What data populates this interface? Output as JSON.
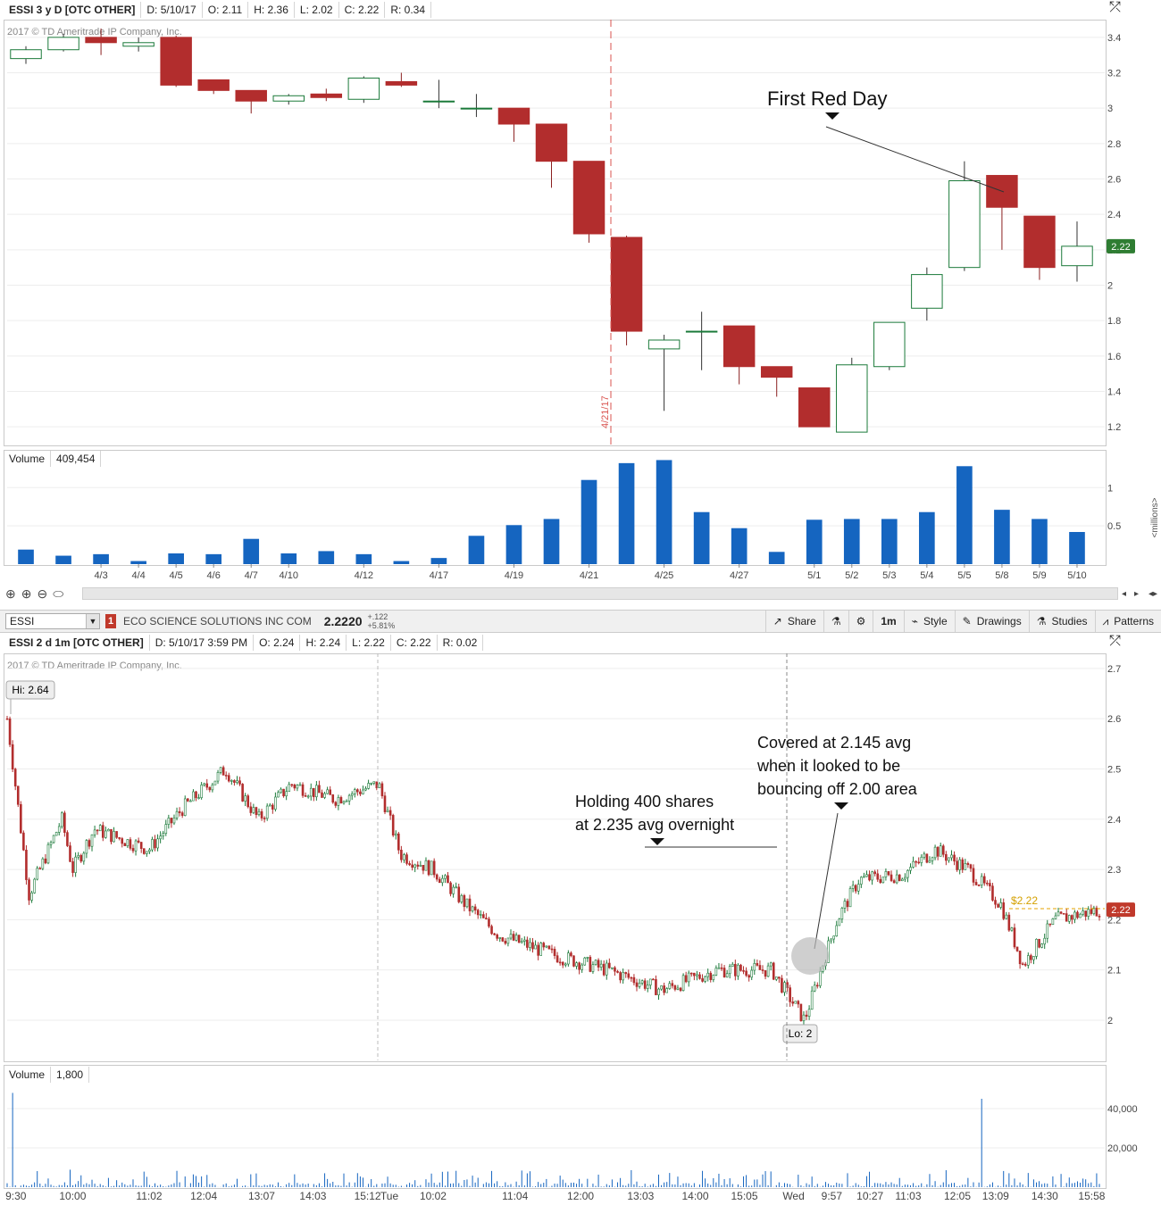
{
  "top": {
    "header": {
      "symbol": "ESSI 3 y D [OTC OTHER]",
      "d": "D: 5/10/17",
      "o": "O: 2.11",
      "h": "H: 2.36",
      "l": "L: 2.02",
      "c": "C: 2.22",
      "r": "R: 0.34"
    },
    "copyright": "2017 © TD Ameritrade IP Company, Inc.",
    "volume_label": "Volume",
    "volume_value": "409,454",
    "volume_unit": "<millions>",
    "event_label": "4/21/17",
    "annotation": "First Red Day"
  },
  "toolbar": {
    "symbol": "ESSI",
    "alert_count": "1",
    "company": "ECO SCIENCE SOLUTIONS INC COM",
    "price": "2.2220",
    "change": "+.122",
    "change_pct": "+5.81%",
    "share": "Share",
    "interval": "1m",
    "style": "Style",
    "drawings": "Drawings",
    "studies": "Studies",
    "patterns": "Patterns"
  },
  "bottom": {
    "header": {
      "symbol": "ESSI 2 d 1m [OTC OTHER]",
      "d": "D: 5/10/17 3:59 PM",
      "o": "O: 2.24",
      "h": "H: 2.24",
      "l": "L: 2.22",
      "c": "C: 2.22",
      "r": "R: 0.02"
    },
    "copyright": "2017 © TD Ameritrade IP Company, Inc.",
    "hi_label": "Hi: 2.64",
    "lo_label": "Lo: 2",
    "last_tag": "$2.22",
    "volume_label": "Volume",
    "volume_value": "1,800",
    "annotation_hold": [
      "Holding 400 shares",
      "at 2.235 avg overnight"
    ],
    "annotation_cover": [
      "Covered at 2.145 avg",
      "when it looked to be",
      "bouncing off 2.00 area"
    ]
  },
  "colors": {
    "up": "#1b7a3a",
    "down": "#b22d2d",
    "volume": "#1565c0",
    "last_price": "#2e7d32",
    "last_price_bottom": "#c0392b",
    "event_line": "#d9534f"
  },
  "chart_data": [
    {
      "type": "candlestick",
      "title": "ESSI 3 y D [OTC OTHER]",
      "y_ticks": [
        1.2,
        1.4,
        1.6,
        1.8,
        2,
        2.2,
        2.4,
        2.6,
        2.8,
        3,
        3.2,
        3.4
      ],
      "ylim": [
        1.1,
        3.5
      ],
      "last_price": 2.22,
      "x_tick_labels": [
        "4/3",
        "4/4",
        "4/5",
        "4/6",
        "4/7",
        "4/10",
        "4/12",
        "4/17",
        "4/19",
        "4/21",
        "4/25",
        "4/27",
        "5/1",
        "5/2",
        "5/3",
        "5/4",
        "5/5",
        "5/8",
        "5/9",
        "5/10"
      ],
      "candles": [
        {
          "o": 3.28,
          "h": 3.35,
          "l": 3.25,
          "c": 3.33
        },
        {
          "o": 3.33,
          "h": 3.42,
          "l": 3.32,
          "c": 3.4
        },
        {
          "o": 3.4,
          "h": 3.45,
          "l": 3.3,
          "c": 3.37
        },
        {
          "o": 3.35,
          "h": 3.4,
          "l": 3.32,
          "c": 3.37
        },
        {
          "o": 3.4,
          "h": 3.41,
          "l": 3.12,
          "c": 3.13
        },
        {
          "o": 3.16,
          "h": 3.16,
          "l": 3.08,
          "c": 3.1
        },
        {
          "o": 3.1,
          "h": 3.1,
          "l": 2.97,
          "c": 3.04
        },
        {
          "o": 3.04,
          "h": 3.08,
          "l": 3.02,
          "c": 3.07
        },
        {
          "o": 3.08,
          "h": 3.11,
          "l": 3.04,
          "c": 3.06
        },
        {
          "o": 3.05,
          "h": 3.18,
          "l": 3.03,
          "c": 3.17
        },
        {
          "o": 3.15,
          "h": 3.2,
          "l": 3.12,
          "c": 3.13
        },
        {
          "o": 3.04,
          "h": 3.16,
          "l": 3.0,
          "c": 3.04
        },
        {
          "o": 3.0,
          "h": 3.08,
          "l": 2.95,
          "c": 3.0
        },
        {
          "o": 3.0,
          "h": 3.0,
          "l": 2.81,
          "c": 2.91
        },
        {
          "o": 2.91,
          "h": 2.91,
          "l": 2.55,
          "c": 2.7
        },
        {
          "o": 2.7,
          "h": 2.7,
          "l": 2.24,
          "c": 2.29
        },
        {
          "o": 2.27,
          "h": 2.28,
          "l": 1.66,
          "c": 1.74
        },
        {
          "o": 1.64,
          "h": 1.72,
          "l": 1.29,
          "c": 1.69
        },
        {
          "o": 1.74,
          "h": 1.85,
          "l": 1.52,
          "c": 1.74
        },
        {
          "o": 1.77,
          "h": 1.77,
          "l": 1.44,
          "c": 1.54
        },
        {
          "o": 1.54,
          "h": 1.54,
          "l": 1.37,
          "c": 1.48
        },
        {
          "o": 1.42,
          "h": 1.42,
          "l": 1.2,
          "c": 1.2
        },
        {
          "o": 1.17,
          "h": 1.59,
          "l": 1.17,
          "c": 1.55
        },
        {
          "o": 1.54,
          "h": 1.79,
          "l": 1.52,
          "c": 1.79
        },
        {
          "o": 1.87,
          "h": 2.1,
          "l": 1.8,
          "c": 2.06
        },
        {
          "o": 2.1,
          "h": 2.7,
          "l": 2.08,
          "c": 2.59
        },
        {
          "o": 2.62,
          "h": 2.62,
          "l": 2.2,
          "c": 2.44
        },
        {
          "o": 2.39,
          "h": 2.39,
          "l": 2.03,
          "c": 2.1
        },
        {
          "o": 2.11,
          "h": 2.36,
          "l": 2.02,
          "c": 2.22
        }
      ],
      "volume": {
        "ylim": [
          0,
          1.4
        ],
        "y_ticks": [
          0.5,
          1
        ],
        "unit": "millions",
        "values": [
          0.19,
          0.11,
          0.13,
          0.04,
          0.14,
          0.13,
          0.33,
          0.14,
          0.17,
          0.13,
          0.04,
          0.08,
          0.37,
          0.51,
          0.59,
          1.1,
          1.32,
          1.36,
          0.68,
          0.47,
          0.16,
          0.58,
          0.59,
          0.59,
          0.68,
          1.28,
          0.71,
          0.59,
          0.42
        ]
      }
    },
    {
      "type": "candlestick",
      "title": "ESSI 2 d 1m [OTC OTHER]",
      "y_ticks": [
        2,
        2.1,
        2.2,
        2.3,
        2.4,
        2.5,
        2.6,
        2.7
      ],
      "ylim": [
        1.92,
        2.73
      ],
      "last_price": 2.22,
      "high": 2.64,
      "low": 2.0,
      "x_tick_labels": [
        "9:30",
        "10:00",
        "11:02",
        "12:04",
        "13:07",
        "14:03",
        "15:12",
        "Tue",
        "10:02",
        "11:04",
        "12:00",
        "13:03",
        "14:00",
        "15:05",
        "Wed",
        "9:57",
        "10:27",
        "11:03",
        "12:05",
        "13:09",
        "14:30",
        "15:58"
      ],
      "price_path": [
        {
          "x": 0,
          "y": 2.6
        },
        {
          "x": 0.02,
          "y": 2.25
        },
        {
          "x": 0.05,
          "y": 2.4
        },
        {
          "x": 0.06,
          "y": 2.3
        },
        {
          "x": 0.08,
          "y": 2.38
        },
        {
          "x": 0.13,
          "y": 2.34
        },
        {
          "x": 0.16,
          "y": 2.42
        },
        {
          "x": 0.2,
          "y": 2.5
        },
        {
          "x": 0.23,
          "y": 2.4
        },
        {
          "x": 0.26,
          "y": 2.47
        },
        {
          "x": 0.3,
          "y": 2.44
        },
        {
          "x": 0.34,
          "y": 2.47
        },
        {
          "x": 0.36,
          "y": 2.33
        },
        {
          "x": 0.39,
          "y": 2.3
        },
        {
          "x": 0.42,
          "y": 2.23
        },
        {
          "x": 0.45,
          "y": 2.17
        },
        {
          "x": 0.5,
          "y": 2.13
        },
        {
          "x": 0.55,
          "y": 2.1
        },
        {
          "x": 0.6,
          "y": 2.06
        },
        {
          "x": 0.65,
          "y": 2.1
        },
        {
          "x": 0.7,
          "y": 2.1
        },
        {
          "x": 0.73,
          "y": 2.0
        },
        {
          "x": 0.76,
          "y": 2.2
        },
        {
          "x": 0.78,
          "y": 2.28
        },
        {
          "x": 0.82,
          "y": 2.29
        },
        {
          "x": 0.85,
          "y": 2.34
        },
        {
          "x": 0.88,
          "y": 2.3
        },
        {
          "x": 0.91,
          "y": 2.23
        },
        {
          "x": 0.93,
          "y": 2.11
        },
        {
          "x": 0.96,
          "y": 2.2
        },
        {
          "x": 1.0,
          "y": 2.22
        }
      ],
      "volume": {
        "ylim": [
          0,
          50000
        ],
        "y_ticks": [
          20000,
          40000
        ],
        "peak_values": [
          48000,
          45000
        ]
      }
    }
  ]
}
